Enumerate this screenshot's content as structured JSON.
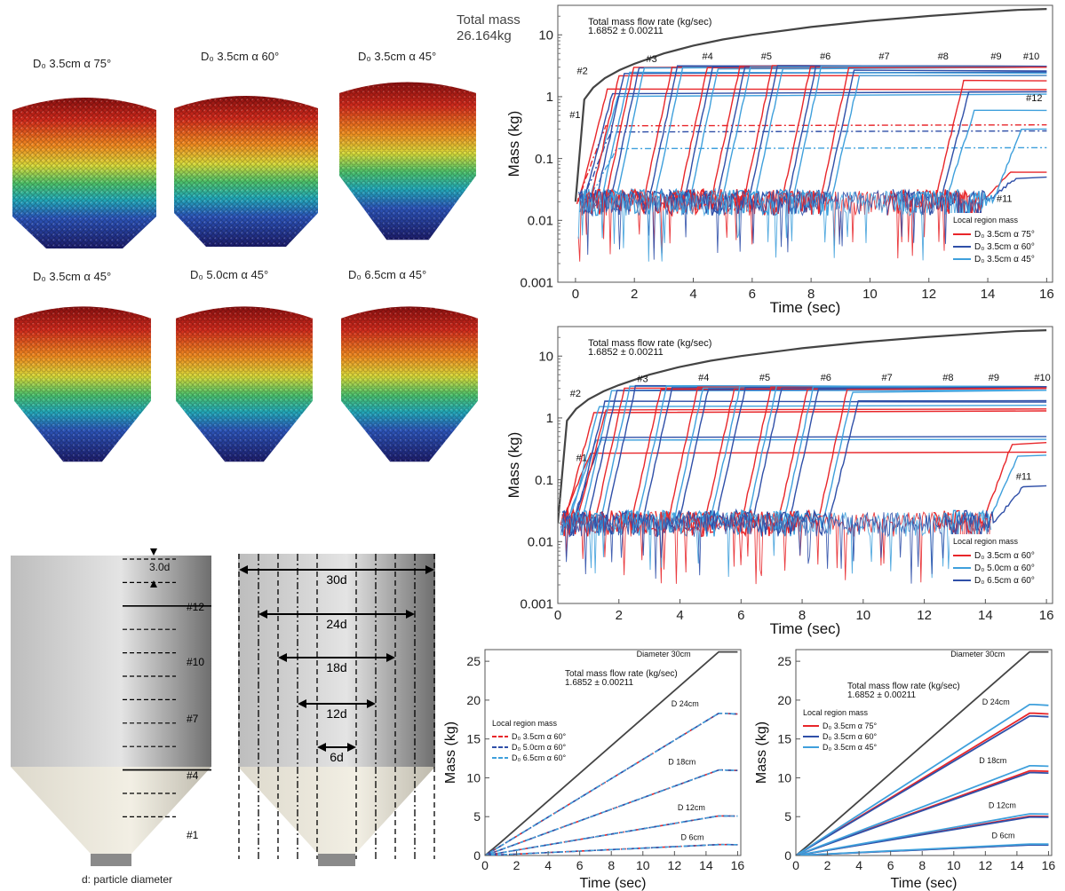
{
  "hopper_panels": [
    {
      "label": "D₀ 3.5cm α  75°",
      "shape": "tall"
    },
    {
      "label": "D₀ 3.5cm α  60°",
      "shape": "tall"
    },
    {
      "label": "D₀ 3.5cm α  45°",
      "shape": "deep"
    },
    {
      "label": "D₀ 3.5cm α  45°",
      "shape": "deep"
    },
    {
      "label": "D₀ 5.0cm α  45°",
      "shape": "deep"
    },
    {
      "label": "D₀ 6.5cm α  45°",
      "shape": "deep"
    }
  ],
  "total_mass": {
    "line1": "Total mass",
    "line2": "26.164kg"
  },
  "schematic": {
    "spacing_label": "3.0d",
    "level_labels": [
      "#12",
      "#10",
      "#7",
      "#4",
      "#1"
    ],
    "diameter_labels": [
      "30d",
      "24d",
      "18d",
      "12d",
      "6d"
    ],
    "caption": "d: particle diameter"
  },
  "chart_data": [
    {
      "type": "line",
      "panel": "top-log",
      "yscale": "log",
      "xlabel": "Time (sec)",
      "ylabel": "Mass (kg)",
      "xlim": [
        -0.6,
        16.2
      ],
      "ylim": [
        0.001,
        30
      ],
      "xticks": [
        0,
        2,
        4,
        6,
        8,
        10,
        12,
        14,
        16
      ],
      "yticks": [
        "0.001",
        "0.01",
        "0.1",
        "1",
        "10"
      ],
      "annotation": {
        "line1": "Total mass flow rate (kg/sec)",
        "line2": "1.6852 ± 0.00211"
      },
      "region_labels": [
        "#1",
        "#2",
        "#3",
        "#4",
        "#5",
        "#6",
        "#7",
        "#8",
        "#9",
        "#10",
        "#11",
        "#12"
      ],
      "legend_title": "Local region mass",
      "legend_position": "bottom-right",
      "series": [
        {
          "name": "D₀ 3.5cm α  75°",
          "color": "#e8262a"
        },
        {
          "name": "D₀ 3.5cm α  60°",
          "color": "#2f4fa8"
        },
        {
          "name": "D₀ 3.5cm α  45°",
          "color": "#3fa0dc"
        }
      ],
      "total_series": {
        "x": [
          0,
          0.3,
          0.6,
          1,
          1.5,
          2,
          3,
          4,
          5,
          6,
          8,
          10,
          12,
          14,
          15,
          16
        ],
        "y": [
          0.02,
          0.9,
          1.4,
          2,
          2.7,
          3.4,
          5,
          6.7,
          8.4,
          10,
          13.4,
          16.8,
          20.2,
          23.6,
          25.3,
          26.2
        ],
        "color": "#444444"
      }
    },
    {
      "type": "line",
      "panel": "middle-log",
      "yscale": "log",
      "xlabel": "Time (sec)",
      "ylabel": "Mass (kg)",
      "xlim": [
        0,
        16.2
      ],
      "ylim": [
        0.001,
        30
      ],
      "xticks": [
        0,
        2,
        4,
        6,
        8,
        10,
        12,
        14,
        16
      ],
      "yticks": [
        "0.001",
        "0.01",
        "0.1",
        "1",
        "10"
      ],
      "annotation": {
        "line1": "Total mass flow rate (kg/sec)",
        "line2": "1.6852 ± 0.00211"
      },
      "region_labels": [
        "#1",
        "#2",
        "#3",
        "#4",
        "#5",
        "#6",
        "#7",
        "#8",
        "#9",
        "#10",
        "#11"
      ],
      "legend_title": "Local region mass",
      "legend_position": "bottom-right",
      "series": [
        {
          "name": "D₀ 3.5cm α  60°",
          "color": "#e8262a"
        },
        {
          "name": "D₀ 5.0cm α  60°",
          "color": "#3fa0dc"
        },
        {
          "name": "D₀ 6.5cm α  60°",
          "color": "#2f4fa8"
        }
      ],
      "total_series": {
        "x": [
          0,
          0.3,
          0.6,
          1,
          1.5,
          2,
          3,
          4,
          5,
          6,
          8,
          10,
          12,
          14,
          15,
          16
        ],
        "y": [
          0.02,
          0.9,
          1.4,
          2,
          2.7,
          3.4,
          5,
          6.7,
          8.4,
          10,
          13.4,
          16.8,
          20.2,
          23.6,
          25.3,
          26.2
        ],
        "color": "#444444"
      }
    },
    {
      "type": "line",
      "panel": "bottom-left-linear",
      "xlabel": "Time (sec)",
      "ylabel": "Mass (kg)",
      "xlim": [
        0,
        16.2
      ],
      "ylim": [
        0,
        26.5
      ],
      "xticks": [
        0,
        2,
        4,
        6,
        8,
        10,
        12,
        14,
        16
      ],
      "yticks": [
        0,
        5,
        10,
        15,
        20,
        25
      ],
      "annotation": {
        "line1": "Total mass flow rate (kg/sec)",
        "line2": "1.6852 ± 0.00211"
      },
      "line_labels": [
        "Diameter 30cm",
        "D 24cm",
        "D 18cm",
        "D 12cm",
        "D 6cm"
      ],
      "line_finals": [
        26.2,
        18.3,
        11.0,
        5.1,
        1.4
      ],
      "legend_title": "Local region mass",
      "legend_position": "middle-left",
      "series": [
        {
          "name": "D₀ 3.5cm α  60°",
          "color": "#e8262a"
        },
        {
          "name": "D₀ 5.0cm α  60°",
          "color": "#2f4fa8"
        },
        {
          "name": "D₀ 6.5cm α  60°",
          "color": "#3fa0dc"
        }
      ]
    },
    {
      "type": "line",
      "panel": "bottom-right-linear",
      "xlabel": "Time (sec)",
      "ylabel": "Mass (kg)",
      "xlim": [
        0,
        16.2
      ],
      "ylim": [
        0,
        26.5
      ],
      "xticks": [
        0,
        2,
        4,
        6,
        8,
        10,
        12,
        14,
        16
      ],
      "yticks": [
        0,
        5,
        10,
        15,
        20,
        25
      ],
      "annotation": {
        "line1": "Total mass flow rate (kg/sec)",
        "line2": "1.6852 ± 0.00211"
      },
      "line_labels": [
        "Diameter 30cm",
        "D 24cm",
        "D 18cm",
        "D 12cm",
        "D 6cm"
      ],
      "line_finals": [
        26.2,
        18.5,
        11.0,
        5.1,
        1.4
      ],
      "legend_title": "Local region mass",
      "legend_position": "upper-left",
      "series": [
        {
          "name": "D₀ 3.5cm α  75°",
          "color": "#e8262a"
        },
        {
          "name": "D₀ 3.5cm α  60°",
          "color": "#2f4fa8"
        },
        {
          "name": "D₀ 3.5cm α  45°",
          "color": "#3fa0dc"
        }
      ]
    }
  ]
}
